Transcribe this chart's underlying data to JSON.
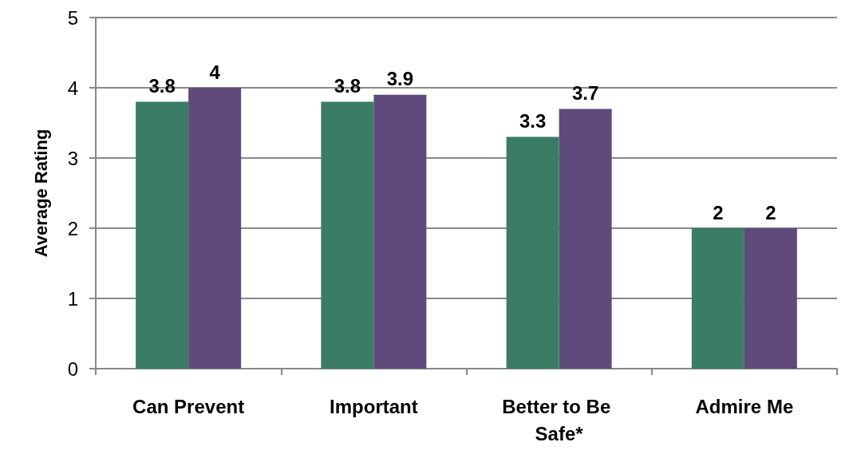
{
  "chart_data": {
    "type": "bar",
    "ylabel": "Average Rating",
    "categories": [
      "Can Prevent",
      "Important",
      "Better to Be Safe*",
      "Admire Me"
    ],
    "series": [
      {
        "color": "#3b7c66",
        "values": [
          3.8,
          3.8,
          3.3,
          2
        ]
      },
      {
        "color": "#5f4a7b",
        "values": [
          4,
          3.9,
          3.7,
          2
        ]
      }
    ],
    "ylim": [
      0,
      5
    ],
    "yticks": [
      0,
      1,
      2,
      3,
      4,
      5
    ],
    "grid": "y",
    "data_labels": true
  }
}
